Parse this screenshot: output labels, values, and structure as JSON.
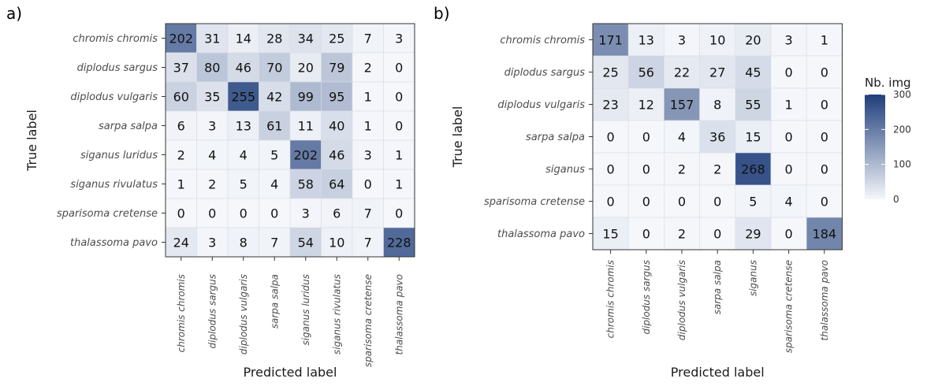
{
  "colors": {
    "low": "#f5f7fb",
    "high": "#1f3e7a",
    "grid": "#ffffff",
    "border": "#333333",
    "tick": "#333333"
  },
  "legend": {
    "title": "Nb. img",
    "ticks": [
      "0",
      "100",
      "200",
      "300"
    ],
    "tick_values": [
      0,
      100,
      200,
      300
    ],
    "max": 300
  },
  "chart_data": [
    {
      "type": "heatmap",
      "panel": "a)",
      "xlabel": "Predicted label",
      "ylabel": "True label",
      "rows": [
        "chromis chromis",
        "diplodus sargus",
        "diplodus vulgaris",
        "sarpa salpa",
        "siganus luridus",
        "siganus rivulatus",
        "sparisoma cretense",
        "thalassoma pavo"
      ],
      "cols": [
        "chromis chromis",
        "diplodus sargus",
        "diplodus vulgaris",
        "sarpa salpa",
        "siganus luridus",
        "siganus rivulatus",
        "sparisoma cretense",
        "thalassoma pavo"
      ],
      "values": [
        [
          202,
          31,
          14,
          28,
          34,
          25,
          7,
          3
        ],
        [
          37,
          80,
          46,
          70,
          20,
          79,
          2,
          0
        ],
        [
          60,
          35,
          255,
          42,
          99,
          95,
          1,
          0
        ],
        [
          6,
          3,
          13,
          61,
          11,
          40,
          1,
          0
        ],
        [
          2,
          4,
          4,
          5,
          202,
          46,
          3,
          1
        ],
        [
          1,
          2,
          5,
          4,
          58,
          64,
          0,
          1
        ],
        [
          0,
          0,
          0,
          0,
          3,
          6,
          7,
          0
        ],
        [
          24,
          3,
          8,
          7,
          54,
          10,
          7,
          228
        ]
      ]
    },
    {
      "type": "heatmap",
      "panel": "b)",
      "xlabel": "Predicted label",
      "ylabel": "True label",
      "rows": [
        "chromis chromis",
        "diplodus sargus",
        "diplodus vulgaris",
        "sarpa salpa",
        "siganus",
        "sparisoma cretense",
        "thalassoma pavo"
      ],
      "cols": [
        "chromis chromis",
        "diplodus sargus",
        "diplodus vulgaris",
        "sarpa salpa",
        "siganus",
        "sparisoma cretense",
        "thalassoma pavo"
      ],
      "values": [
        [
          171,
          13,
          3,
          10,
          20,
          3,
          1
        ],
        [
          25,
          56,
          22,
          27,
          45,
          0,
          0
        ],
        [
          23,
          12,
          157,
          8,
          55,
          1,
          0
        ],
        [
          0,
          0,
          4,
          36,
          15,
          0,
          0
        ],
        [
          0,
          0,
          2,
          2,
          268,
          0,
          0
        ],
        [
          0,
          0,
          0,
          0,
          5,
          4,
          0
        ],
        [
          15,
          0,
          2,
          0,
          29,
          0,
          184
        ]
      ]
    }
  ]
}
